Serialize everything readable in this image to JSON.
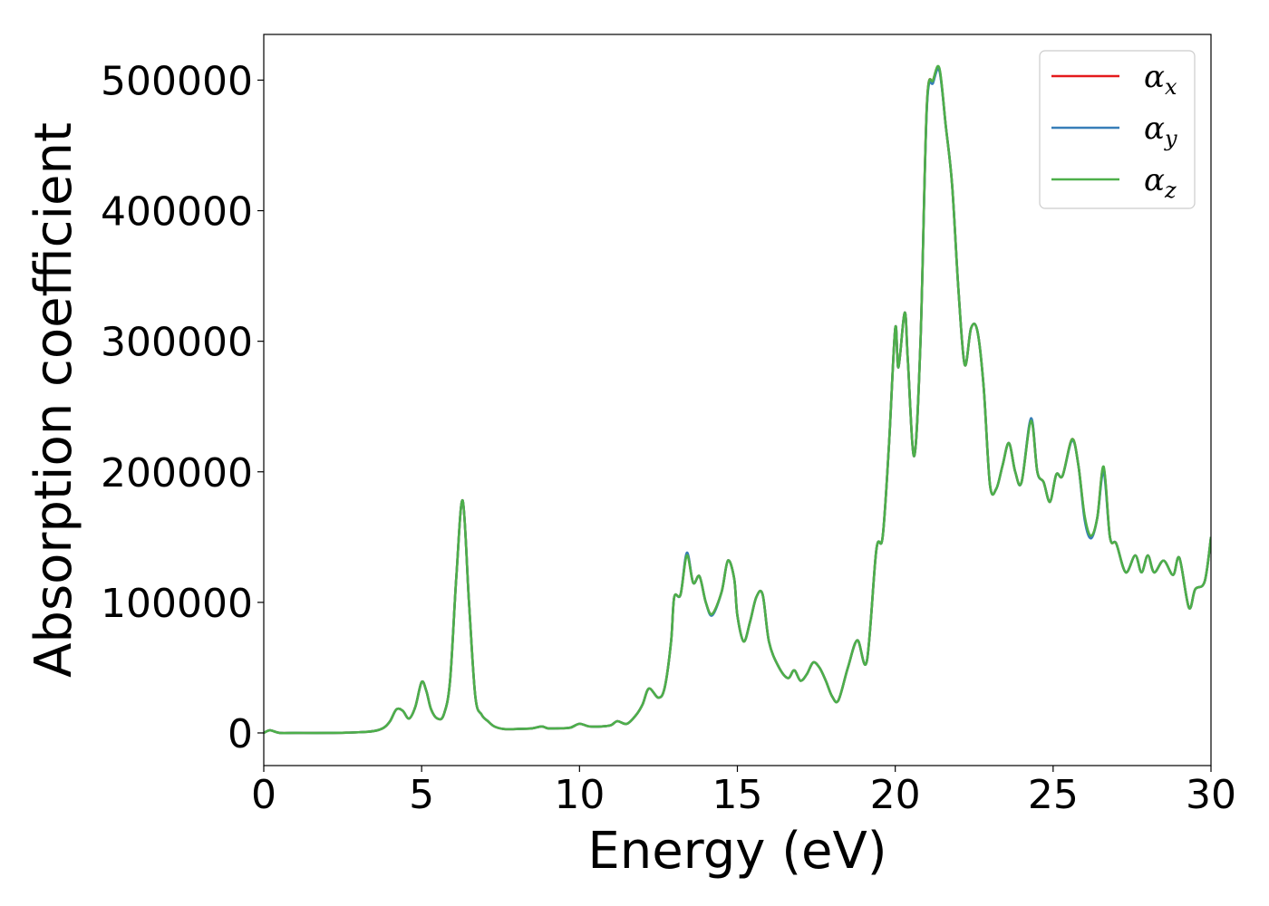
{
  "chart_data": {
    "type": "line",
    "title": "",
    "xlabel": "Energy (eV)",
    "ylabel": "Absorption coefficient",
    "xlim": [
      0,
      30
    ],
    "ylim": [
      -25000,
      535000
    ],
    "xticks": [
      0,
      5,
      10,
      15,
      20,
      25,
      30
    ],
    "xtick_labels": [
      "0",
      "5",
      "10",
      "15",
      "20",
      "25",
      "30"
    ],
    "yticks": [
      0,
      100000,
      200000,
      300000,
      400000,
      500000
    ],
    "ytick_labels": [
      "0",
      "100000",
      "200000",
      "300000",
      "400000",
      "500000"
    ],
    "grid": false,
    "legend_position": "top-right",
    "series": [
      {
        "name": "α_x",
        "label_main": "α",
        "label_sub": "x",
        "color": "#e41a1c",
        "x": [
          0,
          0.2,
          0.5,
          1,
          2,
          3,
          3.5,
          3.8,
          4.0,
          4.2,
          4.4,
          4.6,
          4.8,
          5.0,
          5.15,
          5.3,
          5.5,
          5.7,
          5.9,
          6.1,
          6.3,
          6.5,
          6.7,
          6.9,
          7.1,
          7.3,
          7.6,
          8.0,
          8.5,
          8.8,
          9.0,
          9.3,
          9.7,
          10.0,
          10.3,
          10.7,
          11.0,
          11.2,
          11.5,
          11.8,
          12.0,
          12.2,
          12.5,
          12.7,
          12.9,
          13.0,
          13.2,
          13.4,
          13.6,
          13.8,
          14.0,
          14.2,
          14.5,
          14.7,
          14.9,
          15.0,
          15.2,
          15.4,
          15.6,
          15.8,
          16.0,
          16.3,
          16.6,
          16.8,
          17.0,
          17.2,
          17.4,
          17.6,
          17.8,
          18.0,
          18.2,
          18.5,
          18.8,
          19.1,
          19.4,
          19.6,
          19.8,
          20.0,
          20.1,
          20.3,
          20.4,
          20.6,
          20.8,
          21.0,
          21.2,
          21.4,
          21.6,
          21.8,
          22.0,
          22.2,
          22.4,
          22.6,
          22.8,
          23.0,
          23.2,
          23.4,
          23.6,
          23.8,
          24.0,
          24.3,
          24.5,
          24.7,
          24.9,
          25.1,
          25.3,
          25.6,
          25.8,
          26.0,
          26.2,
          26.4,
          26.6,
          26.8,
          27.0,
          27.3,
          27.6,
          27.8,
          28.0,
          28.2,
          28.5,
          28.8,
          29.0,
          29.3,
          29.5,
          29.8,
          30.0
        ],
        "values": [
          0,
          2000,
          0,
          0,
          0,
          500,
          1500,
          4000,
          9000,
          18000,
          17000,
          11000,
          20000,
          39000,
          32000,
          18000,
          11000,
          14000,
          40000,
          120000,
          178000,
          100000,
          28000,
          14000,
          9000,
          5000,
          3000,
          3000,
          3500,
          5000,
          3500,
          3500,
          4000,
          7000,
          5000,
          5000,
          6000,
          9000,
          7000,
          14000,
          22000,
          34000,
          27000,
          35000,
          70000,
          104000,
          106000,
          137000,
          115000,
          120000,
          100000,
          91000,
          108000,
          132000,
          118000,
          90000,
          70000,
          85000,
          104000,
          106000,
          70000,
          51000,
          42000,
          48000,
          40000,
          45000,
          54000,
          50000,
          40000,
          28000,
          25000,
          50000,
          71000,
          55000,
          140000,
          150000,
          220000,
          310000,
          280000,
          322000,
          285000,
          212000,
          300000,
          480000,
          500000,
          508000,
          465000,
          420000,
          340000,
          282000,
          310000,
          308000,
          265000,
          190000,
          187000,
          205000,
          222000,
          200000,
          192000,
          240000,
          200000,
          192000,
          177000,
          198000,
          197000,
          225000,
          205000,
          165000,
          150000,
          165000,
          203000,
          150000,
          145000,
          123000,
          136000,
          123000,
          136000,
          123000,
          132000,
          121000,
          134000,
          96000,
          110000,
          116000,
          150000
        ]
      },
      {
        "name": "α_y",
        "label_main": "α",
        "label_sub": "y",
        "color": "#377eb8",
        "x": [
          0,
          0.2,
          0.5,
          1,
          2,
          3,
          3.5,
          3.8,
          4.0,
          4.2,
          4.4,
          4.6,
          4.8,
          5.0,
          5.15,
          5.3,
          5.5,
          5.7,
          5.9,
          6.1,
          6.3,
          6.5,
          6.7,
          6.9,
          7.1,
          7.3,
          7.6,
          8.0,
          8.5,
          8.8,
          9.0,
          9.3,
          9.7,
          10.0,
          10.3,
          10.7,
          11.0,
          11.2,
          11.5,
          11.8,
          12.0,
          12.2,
          12.5,
          12.7,
          12.9,
          13.0,
          13.2,
          13.4,
          13.6,
          13.8,
          14.0,
          14.2,
          14.5,
          14.7,
          14.9,
          15.0,
          15.2,
          15.4,
          15.6,
          15.8,
          16.0,
          16.3,
          16.6,
          16.8,
          17.0,
          17.2,
          17.4,
          17.6,
          17.8,
          18.0,
          18.2,
          18.5,
          18.8,
          19.1,
          19.4,
          19.6,
          19.8,
          20.0,
          20.1,
          20.3,
          20.4,
          20.6,
          20.8,
          21.0,
          21.2,
          21.4,
          21.6,
          21.8,
          22.0,
          22.2,
          22.4,
          22.6,
          22.8,
          23.0,
          23.2,
          23.4,
          23.6,
          23.8,
          24.0,
          24.3,
          24.5,
          24.7,
          24.9,
          25.1,
          25.3,
          25.6,
          25.8,
          26.0,
          26.2,
          26.4,
          26.6,
          26.8,
          27.0,
          27.3,
          27.6,
          27.8,
          28.0,
          28.2,
          28.5,
          28.8,
          29.0,
          29.3,
          29.5,
          29.8,
          30.0
        ],
        "values": [
          0,
          2000,
          0,
          0,
          0,
          500,
          1500,
          4000,
          9000,
          18000,
          17000,
          11000,
          20000,
          39000,
          32000,
          18000,
          11000,
          14000,
          40000,
          120000,
          178000,
          100000,
          28000,
          14000,
          9000,
          5000,
          3000,
          3000,
          3500,
          5000,
          3500,
          3500,
          4000,
          7000,
          5000,
          5000,
          6000,
          9000,
          7000,
          14000,
          22000,
          34000,
          27000,
          35000,
          70000,
          104000,
          106000,
          138000,
          115000,
          120000,
          100000,
          90000,
          108000,
          132000,
          118000,
          90000,
          70000,
          85000,
          104000,
          106000,
          70000,
          51000,
          42000,
          48000,
          40000,
          45000,
          54000,
          50000,
          40000,
          28000,
          25000,
          50000,
          71000,
          55000,
          140000,
          150000,
          220000,
          310000,
          280000,
          322000,
          285000,
          212000,
          300000,
          478000,
          498000,
          507000,
          465000,
          420000,
          340000,
          282000,
          310000,
          308000,
          265000,
          190000,
          187000,
          205000,
          222000,
          200000,
          192000,
          241000,
          200000,
          192000,
          177000,
          198000,
          197000,
          224000,
          205000,
          163000,
          149000,
          165000,
          200000,
          150000,
          145000,
          123000,
          136000,
          123000,
          136000,
          123000,
          132000,
          121000,
          134000,
          96000,
          110000,
          116000,
          150000
        ]
      },
      {
        "name": "α_z",
        "label_main": "α",
        "label_sub": "z",
        "color": "#4daf4a",
        "x": [
          0,
          0.2,
          0.5,
          1,
          2,
          3,
          3.5,
          3.8,
          4.0,
          4.2,
          4.4,
          4.6,
          4.8,
          5.0,
          5.15,
          5.3,
          5.5,
          5.7,
          5.9,
          6.1,
          6.3,
          6.5,
          6.7,
          6.9,
          7.1,
          7.3,
          7.6,
          8.0,
          8.5,
          8.8,
          9.0,
          9.3,
          9.7,
          10.0,
          10.3,
          10.7,
          11.0,
          11.2,
          11.5,
          11.8,
          12.0,
          12.2,
          12.5,
          12.7,
          12.9,
          13.0,
          13.2,
          13.4,
          13.6,
          13.8,
          14.0,
          14.2,
          14.5,
          14.7,
          14.9,
          15.0,
          15.2,
          15.4,
          15.6,
          15.8,
          16.0,
          16.3,
          16.6,
          16.8,
          17.0,
          17.2,
          17.4,
          17.6,
          17.8,
          18.0,
          18.2,
          18.5,
          18.8,
          19.1,
          19.4,
          19.6,
          19.8,
          20.0,
          20.1,
          20.3,
          20.4,
          20.6,
          20.8,
          21.0,
          21.2,
          21.4,
          21.6,
          21.8,
          22.0,
          22.2,
          22.4,
          22.6,
          22.8,
          23.0,
          23.2,
          23.4,
          23.6,
          23.8,
          24.0,
          24.3,
          24.5,
          24.7,
          24.9,
          25.1,
          25.3,
          25.6,
          25.8,
          26.0,
          26.2,
          26.4,
          26.6,
          26.8,
          27.0,
          27.3,
          27.6,
          27.8,
          28.0,
          28.2,
          28.5,
          28.8,
          29.0,
          29.3,
          29.5,
          29.8,
          30.0
        ],
        "values": [
          0,
          2000,
          0,
          0,
          0,
          500,
          1500,
          4000,
          9000,
          18000,
          17000,
          11000,
          20000,
          39000,
          32000,
          18000,
          11000,
          14000,
          40000,
          120000,
          178000,
          100000,
          28000,
          14000,
          9000,
          5000,
          3000,
          3000,
          3500,
          5000,
          3500,
          3500,
          4000,
          7000,
          5000,
          5000,
          6000,
          9000,
          7000,
          14000,
          22000,
          34000,
          27000,
          35000,
          70000,
          104000,
          106000,
          136000,
          115000,
          120000,
          100000,
          91000,
          108000,
          132000,
          118000,
          90000,
          70000,
          85000,
          104000,
          106000,
          70000,
          51000,
          42000,
          48000,
          40000,
          45000,
          54000,
          50000,
          40000,
          28000,
          25000,
          50000,
          71000,
          55000,
          140000,
          150000,
          220000,
          310000,
          280000,
          322000,
          285000,
          212000,
          300000,
          480000,
          500000,
          509000,
          465000,
          420000,
          340000,
          282000,
          310000,
          308000,
          265000,
          190000,
          187000,
          205000,
          222000,
          200000,
          192000,
          239000,
          200000,
          192000,
          177000,
          198000,
          197000,
          225000,
          205000,
          166000,
          151000,
          165000,
          204000,
          150000,
          145000,
          123000,
          136000,
          123000,
          136000,
          123000,
          132000,
          121000,
          134000,
          96000,
          110000,
          116000,
          150000
        ]
      }
    ]
  }
}
